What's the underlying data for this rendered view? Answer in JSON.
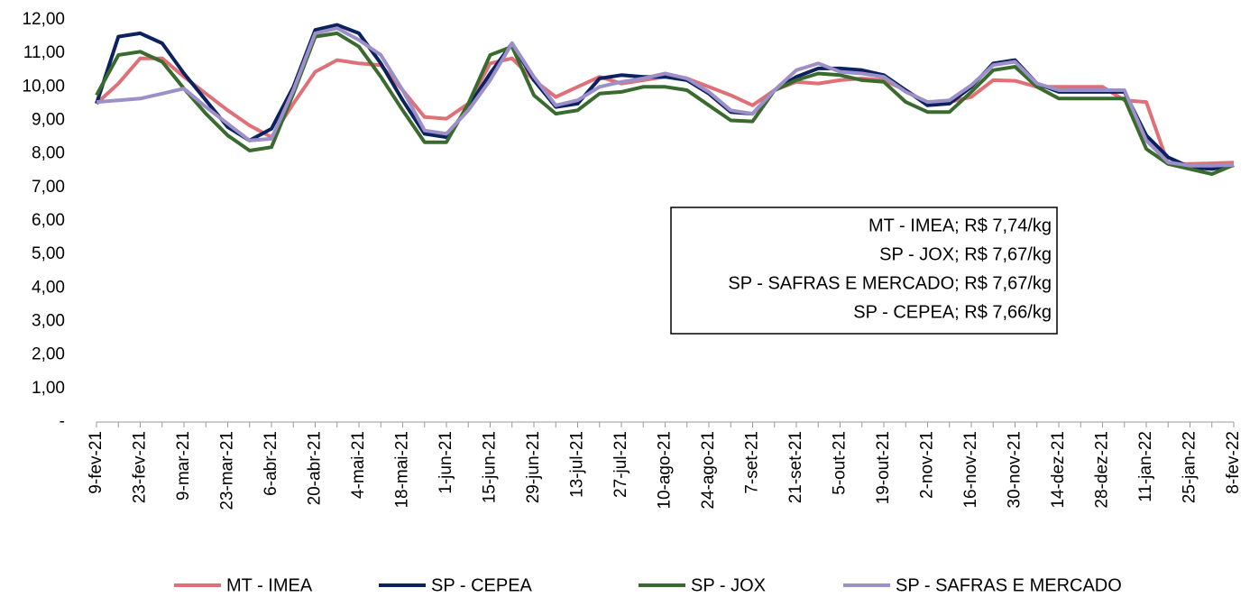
{
  "chart_data": {
    "type": "line",
    "categories": [
      "9-fev-21",
      null,
      "23-fev-21",
      null,
      "9-mar-21",
      null,
      "23-mar-21",
      null,
      "6-abr-21",
      null,
      "20-abr-21",
      null,
      "4-mai-21",
      null,
      "18-mai-21",
      null,
      "1-jun-21",
      null,
      "15-jun-21",
      null,
      "29-jun-21",
      null,
      "13-jul-21",
      null,
      "27-jul-21",
      null,
      "10-ago-21",
      null,
      "24-ago-21",
      null,
      "7-set-21",
      null,
      "21-set-21",
      null,
      "5-out-21",
      null,
      "19-out-21",
      null,
      "2-nov-21",
      null,
      "16-nov-21",
      null,
      "30-nov-21",
      null,
      "14-dez-21",
      null,
      "28-dez-21",
      null,
      "11-jan-22",
      null,
      "25-jan-22",
      null,
      "8-fev-22"
    ],
    "series": [
      {
        "name": "MT - IMEA",
        "color": "#e07078",
        "values": [
          9.5,
          10.1,
          10.85,
          10.85,
          10.3,
          9.8,
          9.3,
          8.85,
          8.5,
          9.5,
          10.45,
          10.8,
          10.7,
          10.65,
          9.9,
          9.1,
          9.05,
          9.5,
          10.7,
          10.85,
          10.2,
          9.7,
          10.0,
          10.3,
          10.1,
          10.2,
          10.3,
          10.25,
          10.0,
          9.75,
          9.45,
          9.9,
          10.15,
          10.1,
          10.2,
          10.25,
          10.2,
          9.9,
          9.5,
          9.55,
          9.7,
          10.2,
          10.18,
          10.0,
          10.0,
          10.0,
          10.0,
          9.6,
          9.55,
          7.7,
          7.7,
          7.72,
          7.74
        ]
      },
      {
        "name": "SP - CEPEA",
        "color": "#0b2160",
        "values": [
          9.5,
          11.5,
          11.6,
          11.3,
          10.4,
          9.6,
          8.8,
          8.4,
          8.75,
          10.0,
          11.7,
          11.85,
          11.6,
          10.7,
          9.6,
          8.6,
          8.5,
          9.4,
          10.4,
          11.3,
          10.2,
          9.4,
          9.5,
          10.25,
          10.35,
          10.3,
          10.3,
          10.2,
          9.8,
          9.25,
          9.2,
          9.9,
          10.3,
          10.55,
          10.55,
          10.5,
          10.35,
          9.9,
          9.45,
          9.5,
          10.0,
          10.7,
          10.8,
          10.1,
          9.85,
          9.85,
          9.85,
          9.85,
          8.55,
          7.9,
          7.6,
          7.55,
          7.66
        ]
      },
      {
        "name": "SP - JOX",
        "color": "#3a6b2e",
        "values": [
          9.75,
          10.95,
          11.05,
          10.75,
          9.95,
          9.2,
          8.55,
          8.1,
          8.2,
          9.8,
          11.5,
          11.6,
          11.2,
          10.3,
          9.3,
          8.35,
          8.35,
          9.5,
          10.95,
          11.2,
          9.75,
          9.2,
          9.3,
          9.8,
          9.85,
          10.0,
          10.0,
          9.9,
          9.45,
          9.0,
          8.97,
          9.9,
          10.2,
          10.4,
          10.35,
          10.2,
          10.15,
          9.55,
          9.25,
          9.25,
          9.85,
          10.5,
          10.6,
          10.0,
          9.65,
          9.65,
          9.65,
          9.65,
          8.15,
          7.7,
          7.55,
          7.4,
          7.67
        ]
      },
      {
        "name": "SP - SAFRAS E MERCADO",
        "color": "#9d8fc7",
        "values": [
          9.55,
          9.6,
          9.65,
          9.8,
          9.95,
          9.4,
          8.9,
          8.4,
          8.45,
          9.9,
          11.6,
          11.75,
          11.4,
          10.95,
          9.9,
          8.7,
          8.6,
          9.3,
          10.2,
          11.3,
          10.3,
          9.45,
          9.6,
          10.0,
          10.15,
          10.25,
          10.4,
          10.25,
          9.85,
          9.3,
          9.2,
          9.9,
          10.5,
          10.7,
          10.45,
          10.4,
          10.3,
          9.85,
          9.55,
          9.6,
          10.05,
          10.65,
          10.75,
          10.1,
          9.9,
          9.9,
          9.9,
          9.9,
          8.4,
          7.75,
          7.65,
          7.65,
          7.67
        ]
      }
    ],
    "ylim": [
      0,
      12
    ],
    "yticks": [
      {
        "value": 0,
        "label": "-"
      },
      {
        "value": 1,
        "label": "1,00"
      },
      {
        "value": 2,
        "label": "2,00"
      },
      {
        "value": 3,
        "label": "3,00"
      },
      {
        "value": 4,
        "label": "4,00"
      },
      {
        "value": 5,
        "label": "5,00"
      },
      {
        "value": 6,
        "label": "6,00"
      },
      {
        "value": 7,
        "label": "7,00"
      },
      {
        "value": 8,
        "label": "8,00"
      },
      {
        "value": 9,
        "label": "9,00"
      },
      {
        "value": 10,
        "label": "10,00"
      },
      {
        "value": 11,
        "label": "11,00"
      },
      {
        "value": 12,
        "label": "12,00"
      }
    ],
    "annotations": [
      "MT - IMEA; R$ 7,74/kg",
      "SP - JOX; R$ 7,67/kg",
      "SP - SAFRAS E MERCADO; R$ 7,67/kg",
      "SP - CEPEA; R$ 7,66/kg"
    ],
    "legend": "bottom"
  }
}
